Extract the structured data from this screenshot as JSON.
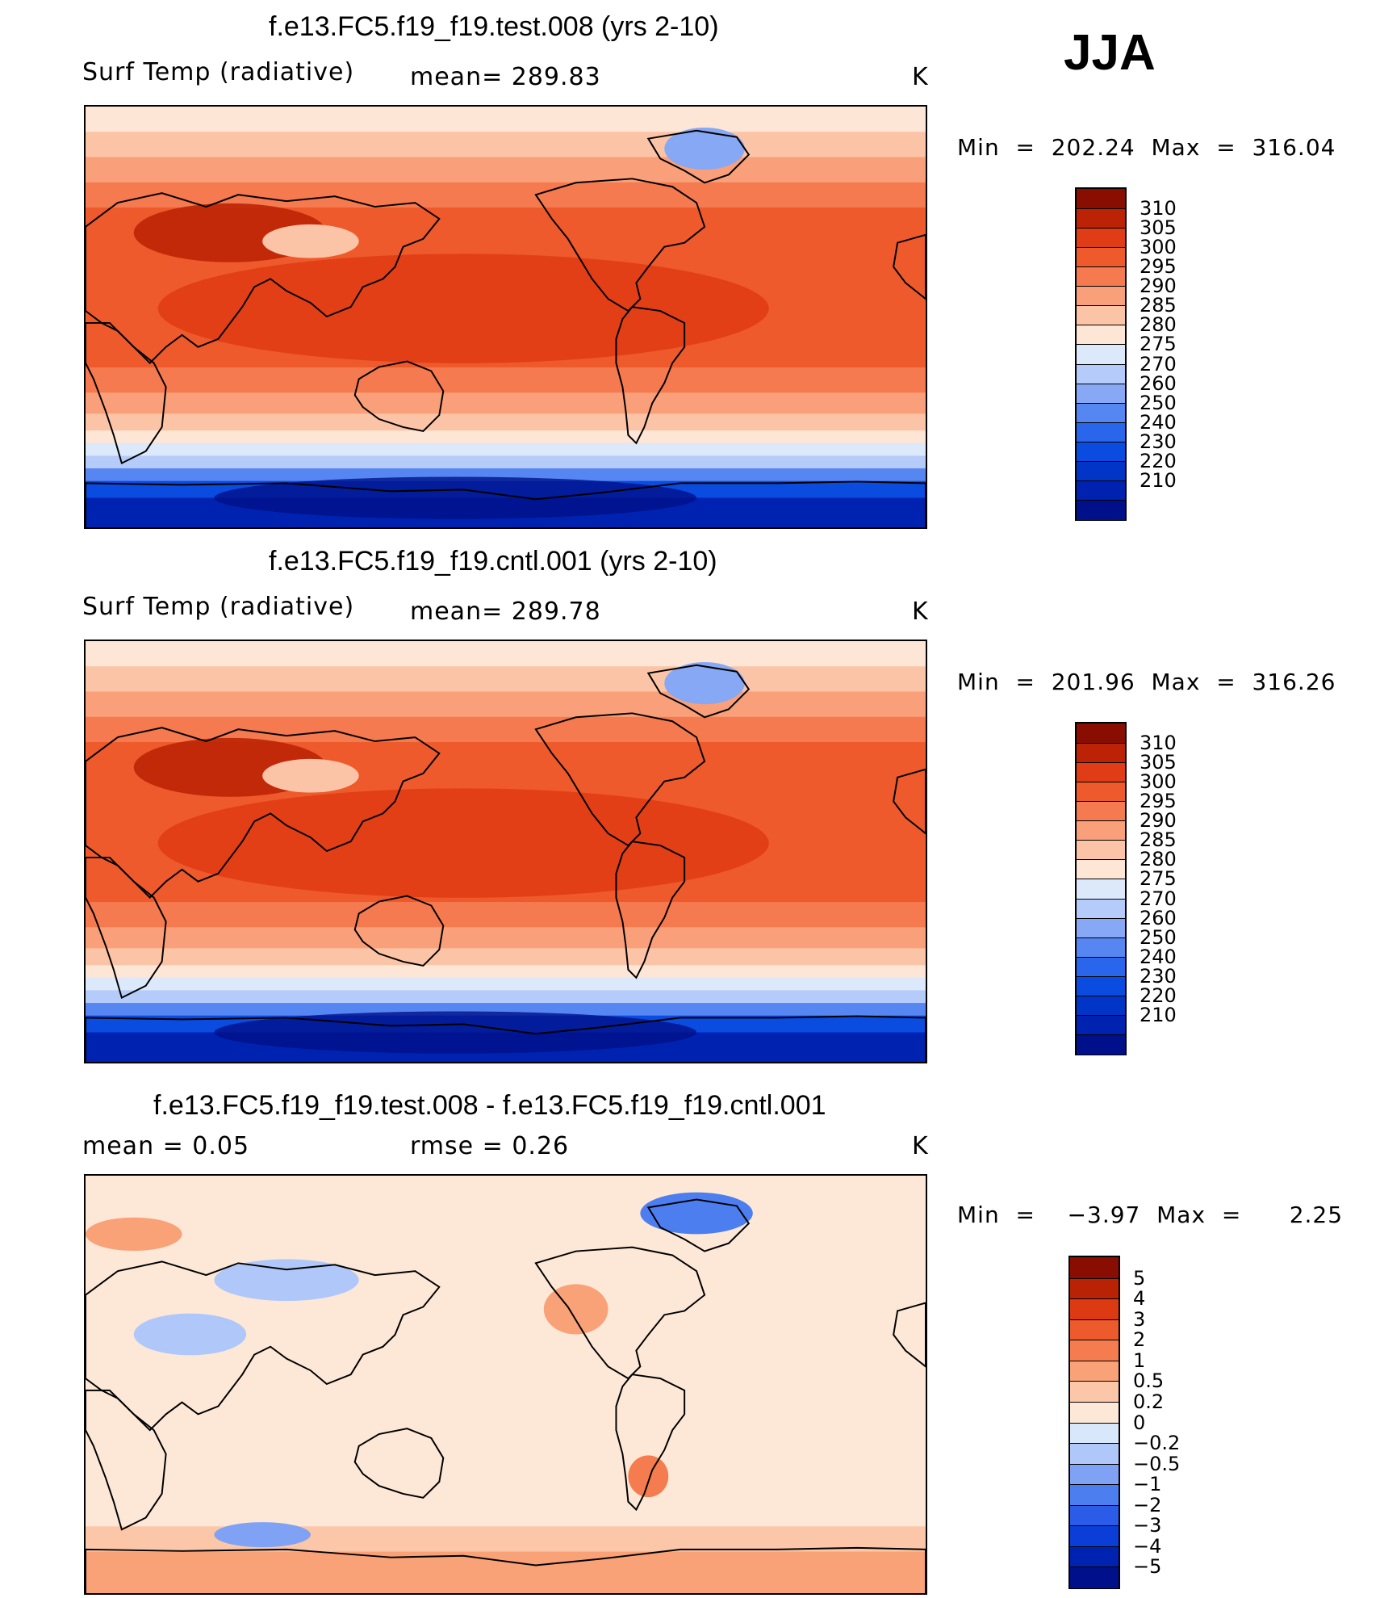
{
  "season": "JJA",
  "colors": {
    "temp_scale": [
      "#00108a",
      "#0022b0",
      "#0035c8",
      "#0a4be0",
      "#2a66ec",
      "#5686f2",
      "#86a8f5",
      "#b5cbfa",
      "#dbe9fb",
      "#fde6d6",
      "#fcc4a6",
      "#f9a07a",
      "#f57a4f",
      "#ee5a2c",
      "#e03c15",
      "#bc2306",
      "#8a0d02"
    ],
    "diff_scale": [
      "#00108a",
      "#0022b0",
      "#0a3ed6",
      "#2a5ce8",
      "#4d7ef0",
      "#7fa2f5",
      "#afc8f9",
      "#d9e7fb",
      "#fde8d8",
      "#fcc7a8",
      "#f9a278",
      "#f47c4e",
      "#ed5a2c",
      "#dc3a12",
      "#b92205",
      "#8a0d02"
    ]
  },
  "panels": [
    {
      "title": "f.e13.FC5.f19_f19.test.008 (yrs 2-10)",
      "left_label": "Surf Temp (radiative)",
      "center_label": "mean= 289.83",
      "units": "K",
      "minmax": "Min  =  202.24  Max  =  316.04",
      "colorbar_labels": [
        "310",
        "305",
        "300",
        "295",
        "290",
        "285",
        "280",
        "275",
        "270",
        "260",
        "250",
        "240",
        "230",
        "220",
        "210"
      ]
    },
    {
      "title": "f.e13.FC5.f19_f19.cntl.001 (yrs 2-10)",
      "left_label": "Surf Temp (radiative)",
      "center_label": "mean= 289.78",
      "units": "K",
      "minmax": "Min  =  201.96  Max  =  316.26",
      "colorbar_labels": [
        "310",
        "305",
        "300",
        "295",
        "290",
        "285",
        "280",
        "275",
        "270",
        "260",
        "250",
        "240",
        "230",
        "220",
        "210"
      ]
    },
    {
      "title": "f.e13.FC5.f19_f19.test.008 - f.e13.FC5.f19_f19.cntl.001",
      "left_label": "mean  =      0.05",
      "center_label": "rmse  =      0.26",
      "units": "K",
      "minmax": "Min  =    −3.97  Max  =      2.25",
      "colorbar_labels": [
        "5",
        "4",
        "3",
        "2",
        "1",
        "0.5",
        "0.2",
        "0",
        "−0.2",
        "−0.5",
        "−1",
        "−2",
        "−3",
        "−4",
        "−5"
      ]
    }
  ]
}
